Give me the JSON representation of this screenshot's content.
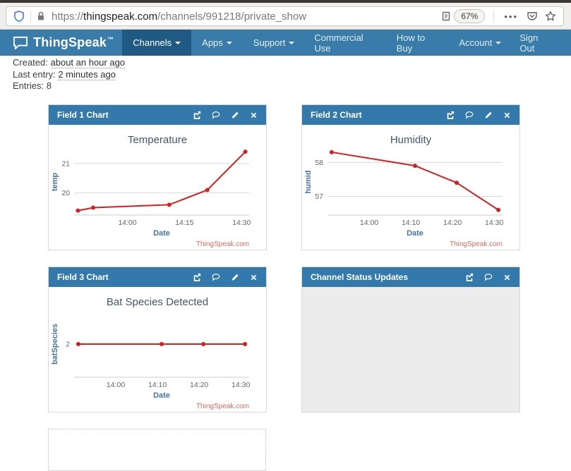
{
  "browser": {
    "url_prefix": "https://",
    "url_domain": "thingspeak.com",
    "url_path": "/channels/991218/private_show",
    "zoom_level": "67%",
    "more_label": "•••",
    "icons": [
      "tracking-protection-shield",
      "lock",
      "reader-mode",
      "more-options",
      "pocket",
      "bookmark-star"
    ]
  },
  "navbar": {
    "brand": "ThingSpeak",
    "brand_tm": "™",
    "left_items": [
      {
        "label": "Channels",
        "caret": true,
        "active": true
      },
      {
        "label": "Apps",
        "caret": true
      },
      {
        "label": "Support",
        "caret": true
      }
    ],
    "right_items": [
      {
        "label": "Commercial Use"
      },
      {
        "label": "How to Buy"
      },
      {
        "label": "Account",
        "caret": true
      },
      {
        "label": "Sign Out"
      }
    ]
  },
  "meta": {
    "created_label": "Created:",
    "created_value": "about an hour ago",
    "last_entry_label": "Last entry:",
    "last_entry_value": "2 minutes ago",
    "entries_label": "Entries:",
    "entries_value": "8"
  },
  "colors": {
    "navbar_blue": "#3a7ca9",
    "active_tab_blue": "#1e5a82",
    "panel_header_blue": "#3379ab",
    "series_red": "#d62020",
    "axis_label_blue": "#4572a7",
    "watermark_red": "#e0685c"
  },
  "panels": [
    {
      "title": "Field 1 Chart",
      "actions": [
        "popout",
        "comment",
        "edit",
        "close"
      ],
      "chart": {
        "type": "line",
        "title": "Temperature",
        "xlabel": "Date",
        "ylabel": "temp",
        "watermark": "ThingSpeak.com",
        "color": "#d62020",
        "x_domain": [
          "13:46",
          "14:32"
        ],
        "y_domain": [
          19.25,
          21.5
        ],
        "x_ticks": [
          "14:00",
          "14:15",
          "14:30"
        ],
        "y_ticks": [
          {
            "label": "21",
            "value": 21
          },
          {
            "label": "20",
            "value": 20
          }
        ],
        "points": [
          {
            "time": "13:47",
            "value": 19.4
          },
          {
            "time": "13:51",
            "value": 19.5
          },
          {
            "time": "14:11",
            "value": 19.6
          },
          {
            "time": "14:21",
            "value": 20.1
          },
          {
            "time": "14:31",
            "value": 21.4
          }
        ]
      }
    },
    {
      "title": "Field 2 Chart",
      "actions": [
        "popout",
        "comment",
        "edit",
        "close"
      ],
      "chart": {
        "type": "line",
        "title": "Humidity",
        "xlabel": "Date",
        "ylabel": "humid",
        "watermark": "ThingSpeak.com",
        "color": "#d62020",
        "x_domain": [
          "13:50",
          "14:32"
        ],
        "y_domain": [
          56.45,
          58.4
        ],
        "x_ticks": [
          "14:00",
          "14:10",
          "14:20",
          "14:30"
        ],
        "y_ticks": [
          {
            "label": "58",
            "value": 58
          },
          {
            "label": "57",
            "value": 57
          }
        ],
        "points": [
          {
            "time": "13:51",
            "value": 58.3
          },
          {
            "time": "14:11",
            "value": 57.9
          },
          {
            "time": "14:21",
            "value": 57.4
          },
          {
            "time": "14:31",
            "value": 56.6
          }
        ]
      }
    },
    {
      "title": "Field 3 Chart",
      "actions": [
        "popout",
        "comment",
        "edit",
        "close"
      ],
      "chart": {
        "type": "line",
        "title": "Bat Species Detected",
        "xlabel": "Date",
        "ylabel": "batSpecies",
        "watermark": "ThingSpeak.com",
        "color": "#d62020",
        "x_domain": [
          "13:50",
          "14:32"
        ],
        "y_domain": [
          1,
          3
        ],
        "x_ticks": [
          "14:00",
          "14:10",
          "14:20",
          "14:30"
        ],
        "y_ticks": [
          {
            "label": "2",
            "value": 2
          }
        ],
        "points": [
          {
            "time": "13:51",
            "value": 2
          },
          {
            "time": "14:11",
            "value": 2
          },
          {
            "time": "14:21",
            "value": 2
          },
          {
            "time": "14:31",
            "value": 2
          }
        ]
      }
    },
    {
      "title": "Channel Status Updates",
      "actions": [
        "popout",
        "comment",
        "close"
      ],
      "chart": null
    }
  ]
}
